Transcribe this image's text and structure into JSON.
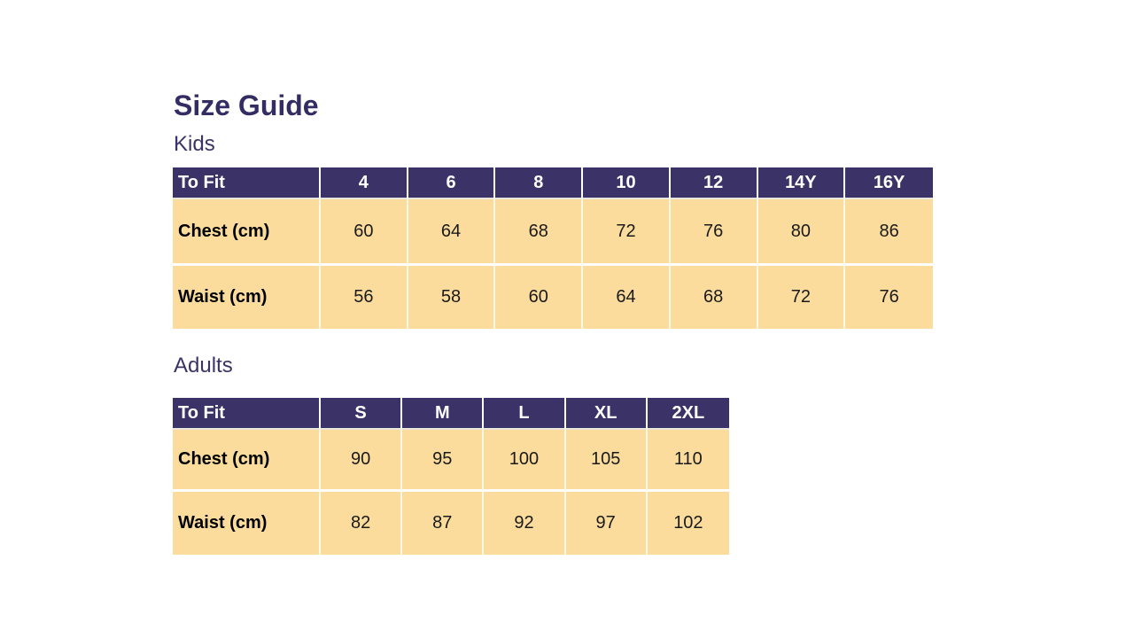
{
  "page": {
    "title": "Size Guide",
    "background": "#FFFFFF"
  },
  "colors": {
    "title_text": "#332D63",
    "section_label_text": "#3B3367",
    "table_header_bg": "#3B3367",
    "table_header_text": "#FFFFFF",
    "table_body_bg": "#FBDC9C",
    "table_body_text": "#1A1A1A",
    "cell_border": "#FFFFFF"
  },
  "sections": [
    {
      "label": "Kids",
      "table": {
        "header": [
          "To Fit",
          "4",
          "6",
          "8",
          "10",
          "12",
          "14Y",
          "16Y"
        ],
        "rows": [
          {
            "label": "Chest (cm)",
            "values": [
              "60",
              "64",
              "68",
              "72",
              "76",
              "80",
              "86"
            ]
          },
          {
            "label": "Waist (cm)",
            "values": [
              "56",
              "58",
              "60",
              "64",
              "68",
              "72",
              "76"
            ]
          }
        ]
      }
    },
    {
      "label": "Adults",
      "table": {
        "header": [
          "To Fit",
          "S",
          "M",
          "L",
          "XL",
          "2XL"
        ],
        "rows": [
          {
            "label": "Chest (cm)",
            "values": [
              "90",
              "95",
              "100",
              "105",
              "110"
            ]
          },
          {
            "label": "Waist (cm)",
            "values": [
              "82",
              "87",
              "92",
              "97",
              "102"
            ]
          }
        ]
      }
    }
  ]
}
